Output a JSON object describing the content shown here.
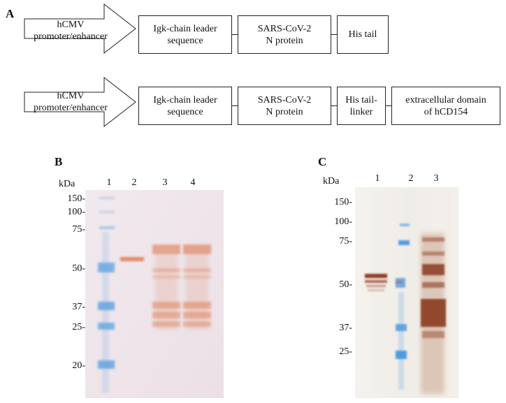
{
  "panelA": {
    "label": "A",
    "construct1": {
      "promoter_line1": "hCMV",
      "promoter_line2": "promoter/enhancer",
      "leader_line1": "Igk-chain leader",
      "leader_line2": "sequence",
      "n_line1": "SARS-CoV-2",
      "n_line2": "N protein",
      "tail": "His tail"
    },
    "construct2": {
      "promoter_line1": "hCMV",
      "promoter_line2": "promoter/enhancer",
      "leader_line1": "Igk-chain leader",
      "leader_line2": "sequence",
      "n_line1": "SARS-CoV-2",
      "n_line2": "N protein",
      "tail_line1": "His tail-",
      "tail_line2": "linker",
      "cd_line1": "extracellular domain",
      "cd_line2": "of hCD154"
    }
  },
  "panelB": {
    "label": "B",
    "unit": "kDa",
    "lanes": [
      "1",
      "2",
      "3",
      "4"
    ],
    "markers": [
      "150-",
      "100-",
      "75-",
      "50-",
      "37-",
      "25-",
      "20-"
    ]
  },
  "panelC": {
    "label": "C",
    "unit": "kDa",
    "lanes": [
      "1",
      "2",
      "3"
    ],
    "markers": [
      "150-",
      "100-",
      "75-",
      "50-",
      "37-",
      "25-"
    ]
  },
  "colors": {
    "gelB_background": "#efe6ec",
    "gelC_background": "#f4f1ec",
    "ladder_blue": "#5aa0e0",
    "band_orange": "#e09070",
    "band_brown": "#8a3a1c"
  }
}
